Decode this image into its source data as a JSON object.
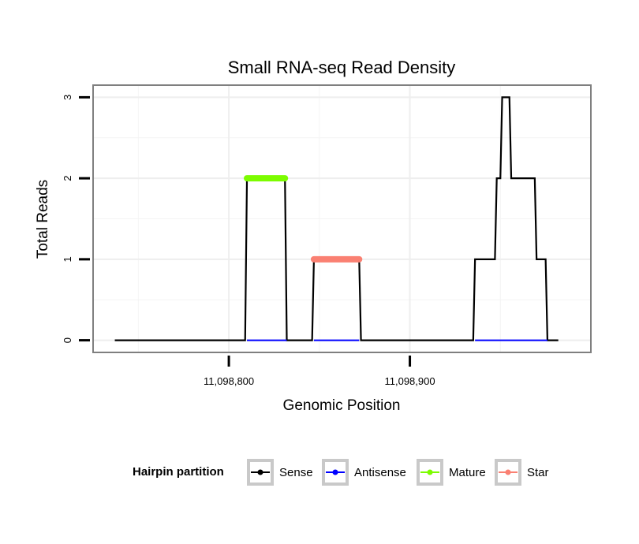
{
  "chart_data": {
    "type": "line",
    "title": "Small RNA-seq Read Density",
    "xlabel": "Genomic Position",
    "ylabel": "Total Reads",
    "xlim": [
      11098725,
      11099000
    ],
    "ylim": [
      -0.15,
      3.15
    ],
    "xticks": [
      {
        "value": 11098800,
        "label": "11,098,800"
      },
      {
        "value": 11098900,
        "label": "11,098,900"
      }
    ],
    "yticks": [
      {
        "value": 0,
        "label": "0"
      },
      {
        "value": 1,
        "label": "1"
      },
      {
        "value": 2,
        "label": "2"
      },
      {
        "value": 3,
        "label": "3"
      }
    ],
    "grid": true,
    "legend": {
      "title": "Hairpin partition",
      "position": "bottom",
      "entries": [
        {
          "label": "Sense",
          "color": "#000000"
        },
        {
          "label": "Antisense",
          "color": "#0000ff"
        },
        {
          "label": "Mature",
          "color": "#7cfc00"
        },
        {
          "label": "Star",
          "color": "#fa8072"
        }
      ]
    },
    "series": [
      {
        "name": "Sense",
        "color": "#000000",
        "points": [
          [
            11098737,
            0
          ],
          [
            11098809,
            0
          ],
          [
            11098810,
            2
          ],
          [
            11098831,
            2
          ],
          [
            11098832,
            0
          ],
          [
            11098846,
            0
          ],
          [
            11098847,
            1
          ],
          [
            11098872,
            1
          ],
          [
            11098873,
            0
          ],
          [
            11098935,
            0
          ],
          [
            11098936,
            1
          ],
          [
            11098947,
            1
          ],
          [
            11098948,
            2
          ],
          [
            11098950,
            2
          ],
          [
            11098951,
            3
          ],
          [
            11098955,
            3
          ],
          [
            11098956,
            2
          ],
          [
            11098969,
            2
          ],
          [
            11098970,
            1
          ],
          [
            11098975,
            1
          ],
          [
            11098976,
            0
          ],
          [
            11098982,
            0
          ]
        ]
      },
      {
        "name": "Antisense",
        "color": "#0000ff",
        "segments": [
          [
            [
              11098810,
              0
            ],
            [
              11098832,
              0
            ]
          ],
          [
            [
              11098847,
              0
            ],
            [
              11098872,
              0
            ]
          ],
          [
            [
              11098936,
              0
            ],
            [
              11098976,
              0
            ]
          ]
        ]
      },
      {
        "name": "Mature",
        "color": "#7cfc00",
        "segments": [
          [
            [
              11098810,
              2
            ],
            [
              11098831,
              2
            ]
          ]
        ]
      },
      {
        "name": "Star",
        "color": "#fa8072",
        "segments": [
          [
            [
              11098847,
              1
            ],
            [
              11098872,
              1
            ]
          ]
        ]
      }
    ]
  }
}
